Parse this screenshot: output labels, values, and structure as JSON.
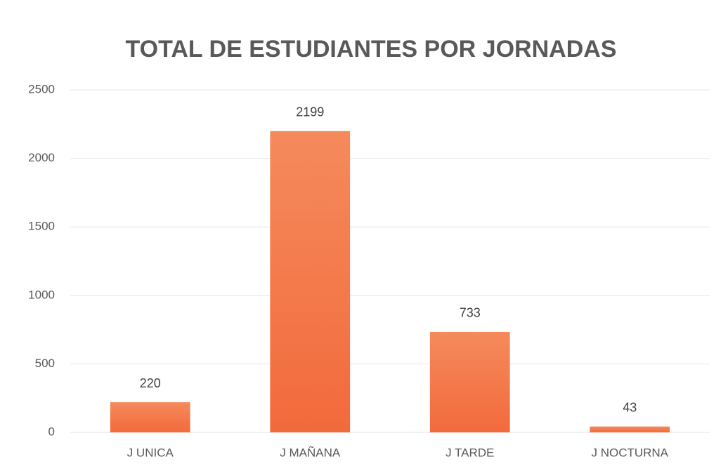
{
  "chart_data": {
    "type": "bar",
    "title": "TOTAL DE ESTUDIANTES POR JORNADAS",
    "categories": [
      "J UNICA",
      "J MAÑANA",
      "J TARDE",
      "J NOCTURNA"
    ],
    "values": [
      220,
      2199,
      733,
      43
    ],
    "color": "#f4784a",
    "ylim": [
      0,
      2500
    ],
    "yticks": [
      0,
      500,
      1000,
      1500,
      2000,
      2500
    ],
    "grid": true
  }
}
